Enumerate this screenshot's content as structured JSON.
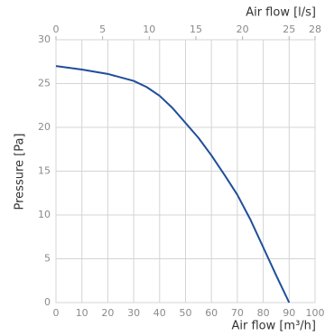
{
  "chart_data": {
    "type": "line",
    "x_label": "Air flow [m³/h]",
    "x2_label": "Air flow [l/s]",
    "y_label": "Pressure [Pa]",
    "x": [
      0,
      10,
      20,
      30,
      35,
      40,
      45,
      50,
      55,
      60,
      65,
      70,
      75,
      80,
      85,
      90
    ],
    "values": [
      27,
      26.6,
      26.1,
      25.3,
      24.6,
      23.6,
      22.2,
      20.5,
      18.8,
      16.8,
      14.6,
      12.3,
      9.5,
      6.3,
      3.1,
      0
    ],
    "color": "#1f4e9a",
    "xlim": [
      0,
      100
    ],
    "xticks": [
      0,
      10,
      20,
      30,
      40,
      50,
      60,
      70,
      80,
      90,
      100
    ],
    "x2lim": [
      0,
      27.78
    ],
    "x2ticks": [
      0,
      5,
      10,
      15,
      20,
      25,
      {
        "value": 27.78,
        "label": "28"
      }
    ],
    "ylim": [
      0,
      30
    ],
    "yticks": [
      0,
      5,
      10,
      15,
      20,
      25,
      30
    ],
    "grid": true
  }
}
